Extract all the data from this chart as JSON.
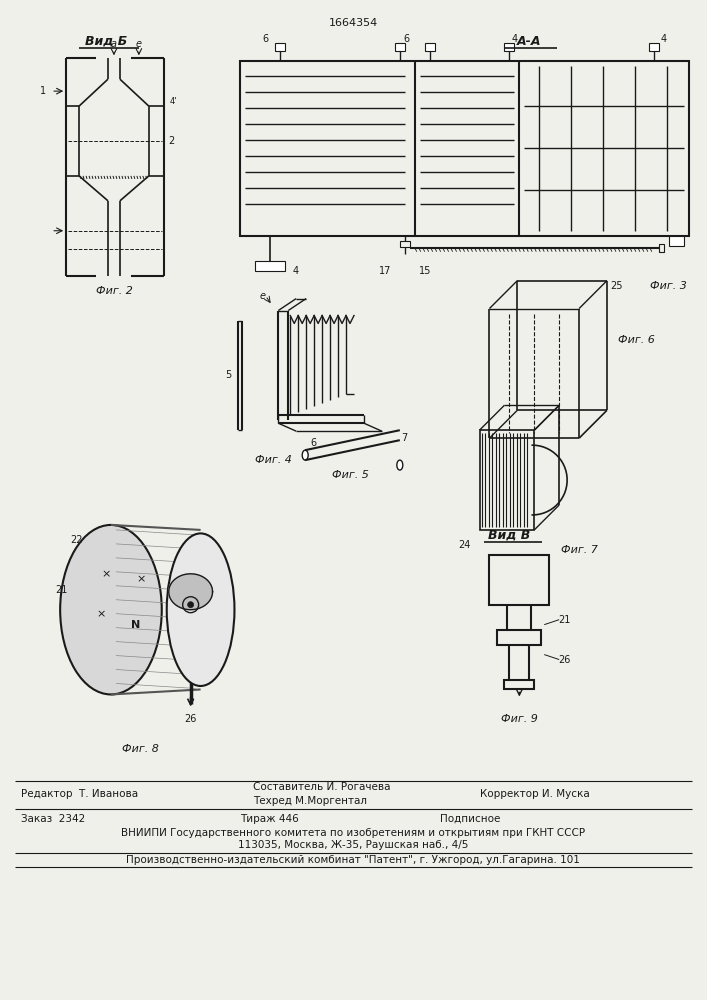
{
  "patent_number": "1664354",
  "background_color": "#f0f0eb",
  "line_color": "#1a1a1a",
  "footer": {
    "editor": "Редактор  Т. Иванова",
    "composer": "Составитель И. Рогачева",
    "techred": "Техред М.Моргентал",
    "corrector": "Корректор И. Муска",
    "order": "Заказ  2342",
    "tirazh": "Тираж 446",
    "podpisnoe": "Подписное",
    "vniiipi": "ВНИИПИ Государственного комитета по изобретениям и открытиям при ГКНТ СССР",
    "address": "113035, Москва, Ж-35, Раушская наб., 4/5",
    "kombnat": "Производственно-издательский комбинат \"Патент\", г. Ужгород, ул.Гагарина. 101"
  },
  "labels": {
    "vid_b_top": "Вид Б",
    "a_a": "А-А",
    "vid_v": "Вид В",
    "fig2": "Фиг. 2",
    "fig3": "Фиг. 3",
    "fig4": "Фиг. 4",
    "fig5": "Фиг. 5",
    "fig6": "Фиг. 6",
    "fig7": "Фиг. 7",
    "fig8": "Фиг. 8",
    "fig9": "Фиг. 9"
  }
}
